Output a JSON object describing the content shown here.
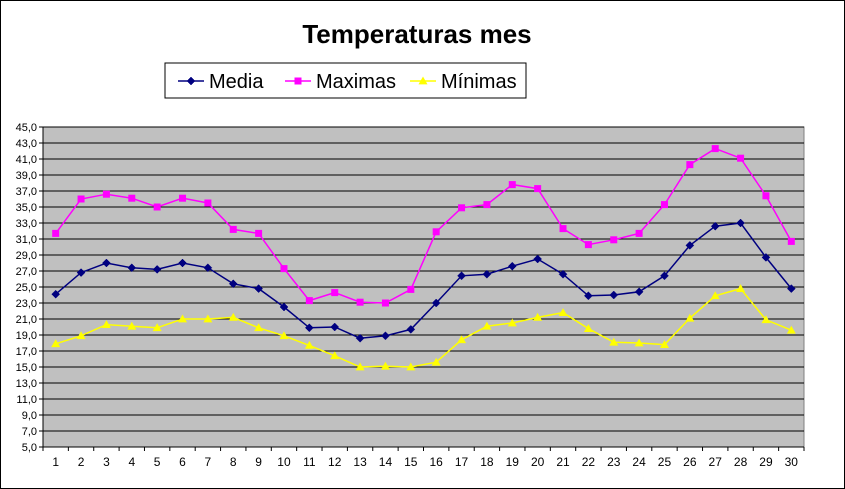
{
  "chart_data": {
    "type": "line",
    "title": "Temperaturas mes",
    "xlabel": "",
    "ylabel": "",
    "categories": [
      "1",
      "2",
      "3",
      "4",
      "5",
      "6",
      "7",
      "8",
      "9",
      "10",
      "11",
      "12",
      "13",
      "14",
      "15",
      "16",
      "17",
      "18",
      "19",
      "20",
      "21",
      "22",
      "23",
      "24",
      "25",
      "26",
      "27",
      "28",
      "29",
      "30"
    ],
    "ylim": [
      5,
      45
    ],
    "y_ticks": [
      "45,0",
      "43,0",
      "41,0",
      "39,0",
      "37,0",
      "35,0",
      "33,0",
      "31,0",
      "29,0",
      "27,0",
      "25,0",
      "23,0",
      "21,0",
      "19,0",
      "17,0",
      "15,0",
      "13,0",
      "11,0",
      "9,0",
      "7,0",
      "5,0"
    ],
    "grid": true,
    "legend_position": "top",
    "plot_background": "#C0C0C0",
    "series": [
      {
        "name": "Media",
        "color": "#000080",
        "marker": "diamond",
        "values": [
          24.1,
          26.8,
          28.0,
          27.4,
          27.2,
          28.0,
          27.4,
          25.4,
          24.8,
          22.5,
          19.9,
          20.0,
          18.6,
          18.9,
          19.7,
          23.0,
          26.4,
          26.6,
          27.6,
          28.5,
          26.6,
          23.9,
          24.0,
          24.4,
          26.4,
          30.2,
          32.6,
          33.0,
          28.7,
          24.8
        ]
      },
      {
        "name": "Maximas",
        "color": "#FF00FF",
        "marker": "square",
        "values": [
          31.7,
          36.0,
          36.6,
          36.1,
          35.0,
          36.1,
          35.5,
          32.2,
          31.7,
          27.3,
          23.3,
          24.3,
          23.1,
          23.0,
          24.7,
          31.9,
          34.9,
          35.3,
          37.8,
          37.3,
          32.3,
          30.3,
          30.9,
          31.7,
          35.3,
          40.3,
          42.3,
          41.1,
          36.4,
          30.7
        ]
      },
      {
        "name": "Mínimas",
        "color": "#FFFF00",
        "marker": "triangle",
        "values": [
          17.9,
          18.9,
          20.3,
          20.1,
          19.9,
          21.0,
          21.0,
          21.2,
          19.9,
          18.9,
          17.7,
          16.4,
          15.0,
          15.1,
          15.0,
          15.6,
          18.4,
          20.1,
          20.5,
          21.2,
          21.8,
          19.8,
          18.1,
          18.0,
          17.8,
          21.1,
          23.9,
          24.8,
          20.9,
          19.6
        ]
      }
    ]
  }
}
